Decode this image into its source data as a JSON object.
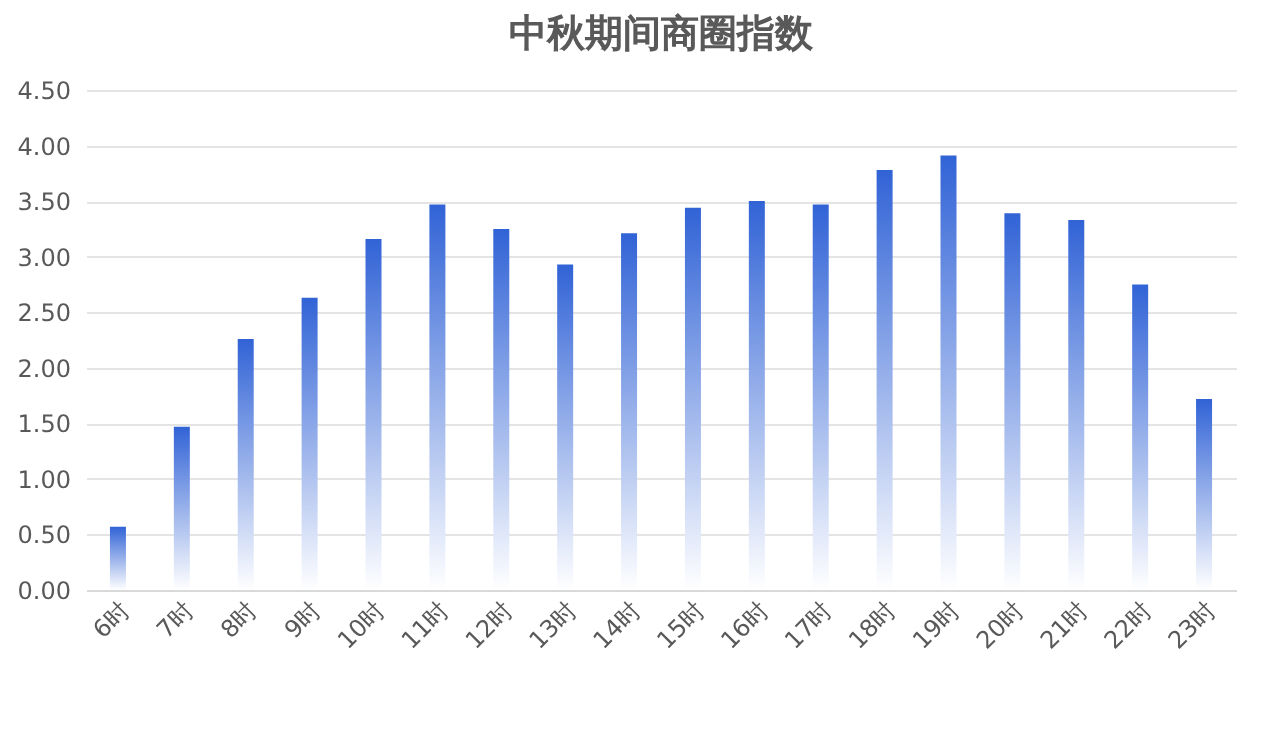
{
  "chart_data": {
    "type": "bar",
    "title": "中秋期间商圈指数",
    "categories": [
      "6时",
      "7时",
      "8时",
      "9时",
      "10时",
      "11时",
      "12时",
      "13时",
      "14时",
      "15时",
      "16时",
      "17时",
      "18时",
      "19时",
      "20时",
      "21时",
      "22时",
      "23时"
    ],
    "values": [
      0.57,
      1.47,
      2.26,
      2.63,
      3.16,
      3.47,
      3.25,
      2.93,
      3.21,
      3.44,
      3.5,
      3.47,
      3.78,
      3.91,
      3.39,
      3.33,
      2.75,
      1.72
    ],
    "color": "#3163d6",
    "ylim": [
      0,
      4.5
    ],
    "yticks": [
      {
        "value": 0,
        "label": "0.00"
      },
      {
        "value": 0.5,
        "label": "0.50"
      },
      {
        "value": 1,
        "label": "1.00"
      },
      {
        "value": 1.5,
        "label": "1.50"
      },
      {
        "value": 2,
        "label": "2.00"
      },
      {
        "value": 2.5,
        "label": "2.50"
      },
      {
        "value": 3,
        "label": "3.00"
      },
      {
        "value": 3.5,
        "label": "3.50"
      },
      {
        "value": 4,
        "label": "4.00"
      },
      {
        "value": 4.5,
        "label": "4.50"
      }
    ],
    "grid": "y"
  }
}
